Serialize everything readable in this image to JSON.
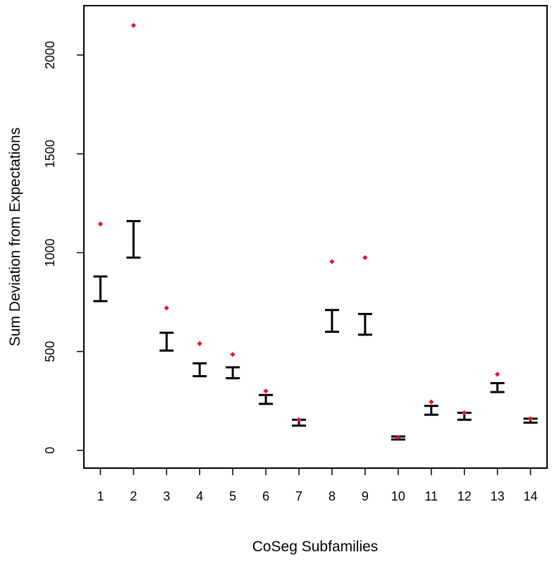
{
  "chart_data": {
    "type": "scatter",
    "title": "",
    "xlabel": "CoSeg Subfamilies",
    "ylabel": "Sum Deviation from Expectations",
    "x": [
      1,
      2,
      3,
      4,
      5,
      6,
      7,
      8,
      9,
      10,
      11,
      12,
      13,
      14
    ],
    "x_tick_labels": [
      "1",
      "2",
      "3",
      "4",
      "5",
      "6",
      "7",
      "8",
      "9",
      "10",
      "11",
      "12",
      "13",
      "14"
    ],
    "xlim": [
      0.5,
      14.5
    ],
    "ylim": [
      -90,
      2250
    ],
    "y_ticks": [
      0,
      500,
      1000,
      1500,
      2000
    ],
    "y_tick_labels": [
      "0",
      "500",
      "1000",
      "1500",
      "2000"
    ],
    "grid": false,
    "legend": "none",
    "series": [
      {
        "kind": "observed-points",
        "color": "#e8141e",
        "values": [
          1145,
          2150,
          720,
          540,
          485,
          300,
          155,
          955,
          975,
          65,
          245,
          190,
          385,
          160
        ]
      },
      {
        "kind": "expected-intervals",
        "color": "#000000",
        "low": [
          755,
          975,
          505,
          375,
          365,
          235,
          125,
          600,
          585,
          55,
          180,
          155,
          295,
          140
        ],
        "high": [
          880,
          1160,
          595,
          440,
          420,
          280,
          155,
          710,
          690,
          70,
          225,
          190,
          340,
          160
        ]
      }
    ]
  }
}
